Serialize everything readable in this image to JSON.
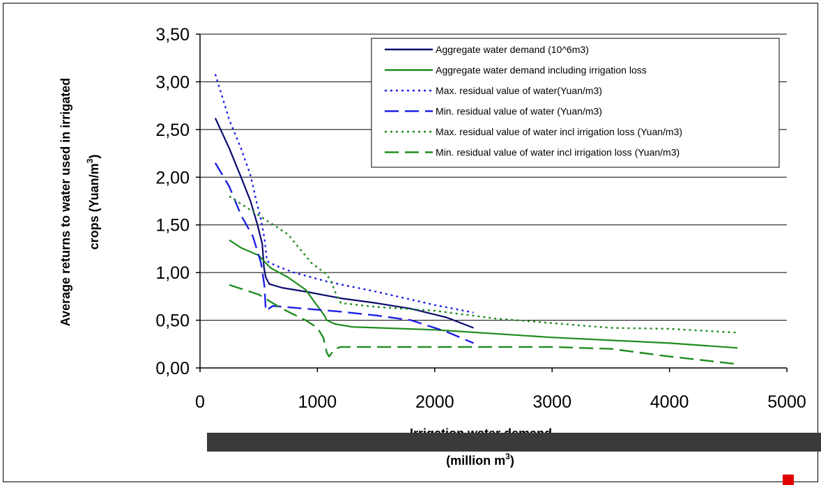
{
  "chart_data": {
    "type": "line",
    "title": "",
    "xlabel": "Irrigation water demand",
    "xlabel_sub_prefix": "(million m",
    "xlabel_sub_sup": "3",
    "xlabel_sub_suffix": ")",
    "ylabel_prefix": "Average returns to water used in irrigated",
    "ylabel_line2": "crops (Yuan/m",
    "ylabel_sup": "3",
    "ylabel_suffix": ")",
    "xlim": [
      0,
      5000
    ],
    "ylim": [
      0,
      3.5
    ],
    "xticks": [
      0,
      1000,
      2000,
      3000,
      4000,
      5000
    ],
    "xtick_labels": [
      "0",
      "1000",
      "2000",
      "3000",
      "4000",
      "5000"
    ],
    "yticks": [
      0,
      0.5,
      1.0,
      1.5,
      2.0,
      2.5,
      3.0,
      3.5
    ],
    "ytick_labels": [
      "0,00",
      "0,50",
      "1,00",
      "1,50",
      "2,00",
      "2,50",
      "3,00",
      "3,50"
    ],
    "grid": "horizontal",
    "legend_position": "top-right",
    "series": [
      {
        "name": "Aggregate water demand (10^6m3)",
        "color": "#0a0a6e",
        "style": "solid",
        "points": [
          [
            130,
            2.62
          ],
          [
            250,
            2.3
          ],
          [
            350,
            2.0
          ],
          [
            430,
            1.75
          ],
          [
            490,
            1.5
          ],
          [
            530,
            1.3
          ],
          [
            545,
            1.05
          ],
          [
            560,
            0.95
          ],
          [
            590,
            0.88
          ],
          [
            700,
            0.84
          ],
          [
            900,
            0.8
          ],
          [
            1200,
            0.73
          ],
          [
            1500,
            0.68
          ],
          [
            1800,
            0.62
          ],
          [
            2100,
            0.53
          ],
          [
            2330,
            0.42
          ]
        ]
      },
      {
        "name": "Aggregate water demand including irrigation loss",
        "color": "#1e8c1e",
        "style": "solid",
        "points": [
          [
            250,
            1.34
          ],
          [
            350,
            1.26
          ],
          [
            500,
            1.18
          ],
          [
            600,
            1.05
          ],
          [
            750,
            0.95
          ],
          [
            900,
            0.82
          ],
          [
            1000,
            0.65
          ],
          [
            1060,
            0.55
          ],
          [
            1080,
            0.5
          ],
          [
            1150,
            0.46
          ],
          [
            1300,
            0.43
          ],
          [
            2000,
            0.4
          ],
          [
            3000,
            0.32
          ],
          [
            4000,
            0.26
          ],
          [
            4580,
            0.21
          ]
        ]
      },
      {
        "name": "Max. residual value of water(Yuan/m3)",
        "color": "#1f1fe6",
        "style": "dotted",
        "points": [
          [
            130,
            3.08
          ],
          [
            250,
            2.6
          ],
          [
            350,
            2.3
          ],
          [
            430,
            2.02
          ],
          [
            480,
            1.75
          ],
          [
            520,
            1.55
          ],
          [
            550,
            1.35
          ],
          [
            570,
            1.12
          ],
          [
            650,
            1.07
          ],
          [
            800,
            1.0
          ],
          [
            1100,
            0.9
          ],
          [
            1500,
            0.8
          ],
          [
            2000,
            0.66
          ],
          [
            2330,
            0.58
          ]
        ]
      },
      {
        "name": "Min. residual value of water (Yuan/m3)",
        "color": "#1f1fe6",
        "style": "longdash",
        "points": [
          [
            130,
            2.15
          ],
          [
            250,
            1.9
          ],
          [
            350,
            1.6
          ],
          [
            450,
            1.38
          ],
          [
            520,
            1.1
          ],
          [
            550,
            0.85
          ],
          [
            560,
            0.6
          ],
          [
            620,
            0.65
          ],
          [
            900,
            0.62
          ],
          [
            1200,
            0.59
          ],
          [
            1500,
            0.55
          ],
          [
            1800,
            0.5
          ],
          [
            2100,
            0.38
          ],
          [
            2330,
            0.26
          ]
        ]
      },
      {
        "name": "Max. residual value of water incl irrigation loss (Yuan/m3)",
        "color": "#1e8c1e",
        "style": "dotted",
        "points": [
          [
            250,
            1.8
          ],
          [
            500,
            1.6
          ],
          [
            750,
            1.4
          ],
          [
            950,
            1.1
          ],
          [
            1080,
            0.98
          ],
          [
            1120,
            0.9
          ],
          [
            1150,
            0.8
          ],
          [
            1200,
            0.68
          ],
          [
            1500,
            0.64
          ],
          [
            2000,
            0.6
          ],
          [
            2500,
            0.52
          ],
          [
            3000,
            0.47
          ],
          [
            3500,
            0.42
          ],
          [
            4000,
            0.41
          ],
          [
            4580,
            0.37
          ]
        ]
      },
      {
        "name": "Min. residual value of water incl irrigation loss (Yuan/m3)",
        "color": "#1e8c1e",
        "style": "longdash",
        "points": [
          [
            250,
            0.87
          ],
          [
            500,
            0.77
          ],
          [
            700,
            0.62
          ],
          [
            900,
            0.5
          ],
          [
            1000,
            0.42
          ],
          [
            1050,
            0.32
          ],
          [
            1080,
            0.16
          ],
          [
            1100,
            0.12
          ],
          [
            1150,
            0.2
          ],
          [
            1200,
            0.22
          ],
          [
            2000,
            0.22
          ],
          [
            3000,
            0.22
          ],
          [
            3500,
            0.2
          ],
          [
            4000,
            0.12
          ],
          [
            4580,
            0.04
          ]
        ]
      }
    ]
  }
}
